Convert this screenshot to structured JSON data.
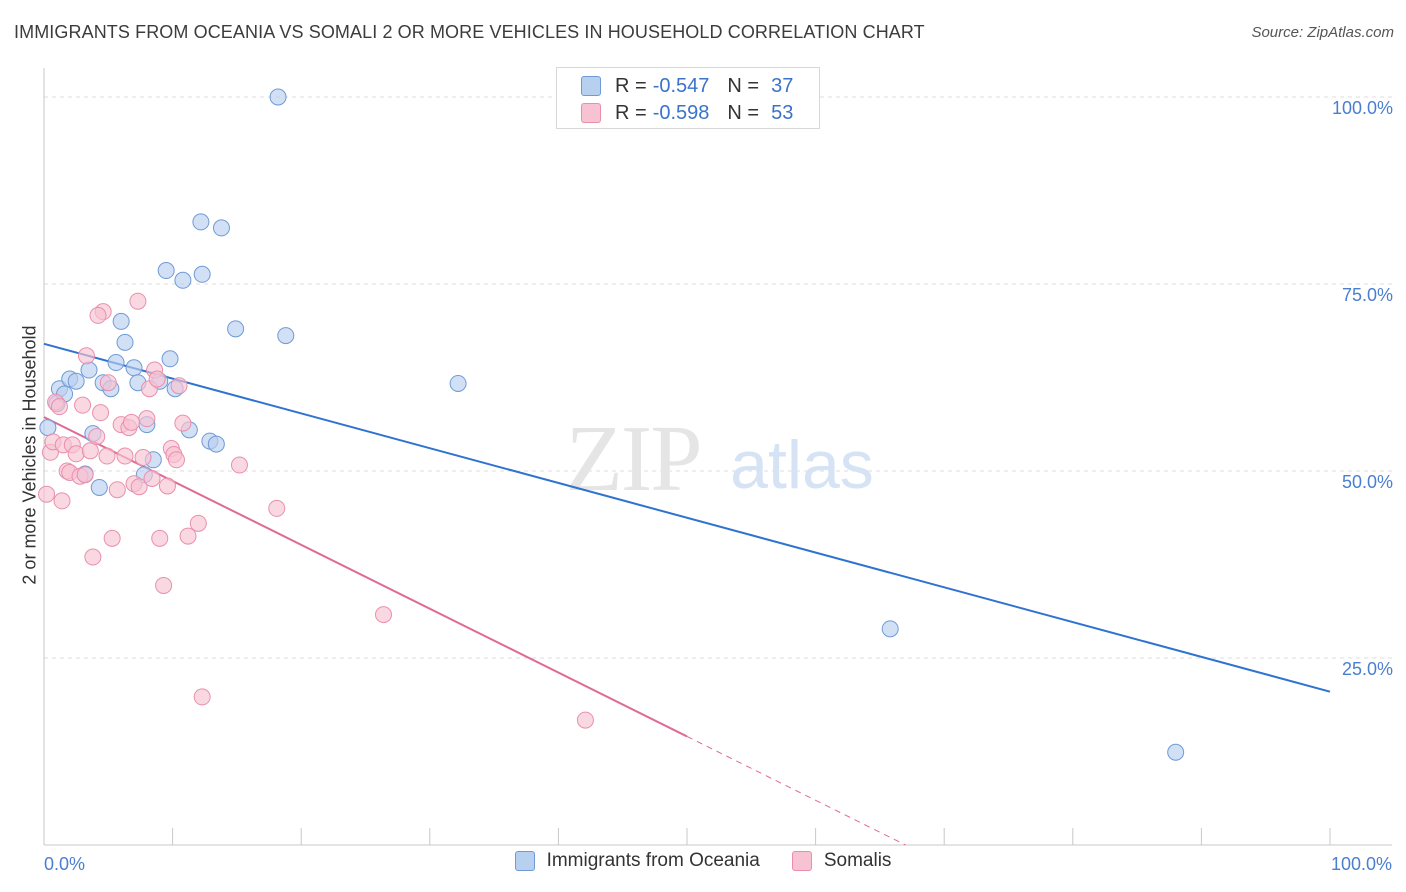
{
  "title": "IMMIGRANTS FROM OCEANIA VS SOMALI 2 OR MORE VEHICLES IN HOUSEHOLD CORRELATION CHART",
  "source": "Source: ZipAtlas.com",
  "watermark": {
    "zip": "ZIP",
    "atlas": "atlas"
  },
  "legend": {
    "rows": [
      {
        "r_label": "R =",
        "r_value": "-0.547",
        "n_label": "N =",
        "n_value": "37"
      },
      {
        "r_label": "R =",
        "r_value": "-0.598",
        "n_label": "N =",
        "n_value": "53"
      }
    ]
  },
  "colors": {
    "blue_fill": "#b8d0f0",
    "blue_stroke": "#6f9ad6",
    "blue_line": "#2f73d0",
    "pink_fill": "#f7c3d3",
    "pink_stroke": "#e98fae",
    "pink_line": "#e06a96",
    "tick_text": "#4a7fd0",
    "grid": "#dddddd"
  },
  "chart_data": {
    "type": "scatter",
    "title": "IMMIGRANTS FROM OCEANIA VS SOMALI 2 OR MORE VEHICLES IN HOUSEHOLD CORRELATION CHART",
    "xlabel": "",
    "ylabel": "2 or more Vehicles in Household",
    "xlim": [
      0,
      100
    ],
    "ylim": [
      0,
      100
    ],
    "x_tick_labels": [
      {
        "value": 0,
        "label": "0.0%"
      },
      {
        "value": 100,
        "label": "100.0%"
      }
    ],
    "y_tick_labels": [
      {
        "value": 100,
        "label": "100.0%"
      },
      {
        "value": 75,
        "label": "75.0%"
      },
      {
        "value": 50,
        "label": "50.0%"
      },
      {
        "value": 25,
        "label": "25.0%"
      }
    ],
    "grid": true,
    "series": [
      {
        "name": "Immigrants from Oceania",
        "color": "blue",
        "r": "-0.547",
        "n": "37",
        "trend": {
          "x1": 0,
          "y1": 67,
          "x2": 100,
          "y2": 20.5,
          "dashed_from": null
        },
        "points": [
          [
            0.3,
            55.8
          ],
          [
            1.0,
            59.0
          ],
          [
            1.2,
            61.0
          ],
          [
            1.6,
            60.3
          ],
          [
            2.0,
            62.3
          ],
          [
            2.5,
            62.0
          ],
          [
            3.2,
            49.6
          ],
          [
            3.5,
            63.5
          ],
          [
            3.8,
            55.0
          ],
          [
            4.3,
            47.8
          ],
          [
            4.6,
            61.8
          ],
          [
            5.2,
            61.0
          ],
          [
            5.6,
            64.5
          ],
          [
            6.0,
            70.0
          ],
          [
            6.3,
            67.2
          ],
          [
            7.0,
            63.8
          ],
          [
            7.3,
            61.8
          ],
          [
            7.8,
            49.5
          ],
          [
            8.0,
            56.2
          ],
          [
            8.5,
            51.5
          ],
          [
            9.0,
            62.0
          ],
          [
            9.8,
            65.0
          ],
          [
            10.2,
            61.0
          ],
          [
            10.8,
            75.5
          ],
          [
            9.5,
            76.8
          ],
          [
            11.3,
            55.5
          ],
          [
            12.3,
            76.3
          ],
          [
            12.2,
            83.3
          ],
          [
            12.9,
            54.0
          ],
          [
            13.4,
            53.6
          ],
          [
            13.8,
            82.5
          ],
          [
            14.9,
            69.0
          ],
          [
            18.2,
            100.0
          ],
          [
            18.8,
            68.1
          ],
          [
            32.2,
            61.7
          ],
          [
            65.8,
            28.9
          ],
          [
            88.0,
            12.4
          ]
        ]
      },
      {
        "name": "Somalis",
        "color": "pink",
        "r": "-0.598",
        "n": "53",
        "trend": {
          "x1": 0,
          "y1": 57.2,
          "x2": 67,
          "y2": 0,
          "dashed_from": 50
        },
        "points": [
          [
            0.2,
            46.9
          ],
          [
            0.5,
            52.5
          ],
          [
            0.7,
            53.9
          ],
          [
            0.9,
            59.2
          ],
          [
            1.2,
            58.6
          ],
          [
            1.5,
            53.5
          ],
          [
            1.8,
            50.0
          ],
          [
            2.0,
            49.8
          ],
          [
            2.2,
            53.5
          ],
          [
            2.5,
            52.3
          ],
          [
            2.8,
            49.3
          ],
          [
            3.0,
            58.8
          ],
          [
            3.3,
            65.4
          ],
          [
            3.6,
            52.7
          ],
          [
            3.8,
            38.5
          ],
          [
            4.1,
            54.6
          ],
          [
            4.4,
            57.8
          ],
          [
            4.6,
            71.3
          ],
          [
            4.2,
            70.8
          ],
          [
            5.0,
            61.8
          ],
          [
            5.3,
            41.0
          ],
          [
            5.7,
            47.5
          ],
          [
            6.0,
            56.2
          ],
          [
            6.3,
            52.0
          ],
          [
            6.6,
            55.8
          ],
          [
            7.0,
            48.3
          ],
          [
            7.3,
            72.7
          ],
          [
            7.7,
            51.8
          ],
          [
            8.0,
            57.0
          ],
          [
            8.2,
            61.0
          ],
          [
            7.4,
            47.9
          ],
          [
            8.6,
            63.5
          ],
          [
            8.8,
            62.3
          ],
          [
            9.0,
            41.0
          ],
          [
            9.3,
            34.7
          ],
          [
            9.6,
            48.0
          ],
          [
            9.9,
            53.0
          ],
          [
            10.1,
            52.2
          ],
          [
            10.3,
            51.5
          ],
          [
            10.5,
            61.4
          ],
          [
            10.8,
            56.4
          ],
          [
            11.2,
            41.3
          ],
          [
            12.0,
            43.0
          ],
          [
            12.3,
            19.8
          ],
          [
            6.8,
            56.5
          ],
          [
            15.2,
            50.8
          ],
          [
            18.1,
            45.0
          ],
          [
            26.4,
            30.8
          ],
          [
            42.1,
            16.7
          ],
          [
            3.2,
            49.5
          ],
          [
            4.9,
            52.0
          ],
          [
            8.4,
            49.0
          ],
          [
            1.4,
            46.0
          ]
        ]
      }
    ]
  },
  "bottom_legend": [
    {
      "label": "Immigrants from Oceania",
      "color": "blue"
    },
    {
      "label": "Somalis",
      "color": "pink"
    }
  ]
}
